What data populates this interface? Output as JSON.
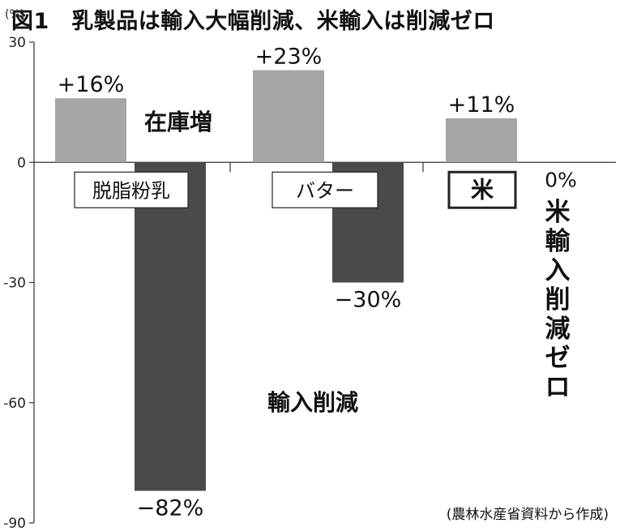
{
  "title": "図1　乳製品は輸入大幅削減、米輸入は削減ゼロ",
  "unit_label": "(%)",
  "source": "(農林水産省資料から作成)",
  "annotations": {
    "stock_increase": "在庫増",
    "import_reduction": "輸入削減",
    "rice_zero_vertical": "米輸入削減ゼロ"
  },
  "chart_data": {
    "type": "bar",
    "title": "図1　乳製品は輸入大幅削減、米輸入は削減ゼロ",
    "ylabel": "(%)",
    "ylim": [
      -90,
      30
    ],
    "yticks": [
      "30",
      "0",
      "-30",
      "-60",
      "-90"
    ],
    "categories": [
      "脱脂粉乳",
      "バター",
      "米"
    ],
    "series": [
      {
        "name": "在庫増",
        "values": [
          16,
          23,
          11
        ],
        "labels": [
          "+16%",
          "+23%",
          "+11%"
        ],
        "color": "#a6a6a6"
      },
      {
        "name": "輸入削減",
        "values": [
          -82,
          -30,
          0
        ],
        "labels": [
          "−82%",
          "−30%",
          "0%"
        ],
        "color": "#4a4a4a"
      }
    ],
    "grid": false
  }
}
